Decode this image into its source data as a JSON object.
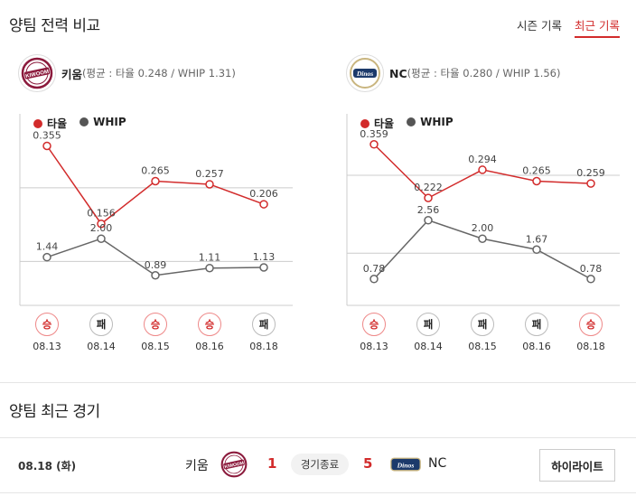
{
  "header": {
    "title": "양팀 전력 비교"
  },
  "tabs": [
    {
      "label": "시즌 기록",
      "active": false
    },
    {
      "label": "최근 기록",
      "active": true
    }
  ],
  "teams": [
    {
      "name": "키움",
      "stats": "(평균 : 타율 0.248 / WHIP 1.31)",
      "logo_icon": "kiwoom-logo-icon",
      "legend": {
        "avg": "타율",
        "whip": "WHIP"
      },
      "dates": [
        "08.13",
        "08.14",
        "08.15",
        "08.16",
        "08.18"
      ],
      "results": [
        "승",
        "패",
        "승",
        "승",
        "패"
      ],
      "avg_labels": [
        "0.355",
        "0.156",
        "0.265",
        "0.257",
        "0.206"
      ],
      "whip_labels": [
        "1.44",
        "2.00",
        "0.89",
        "1.11",
        "1.13"
      ]
    },
    {
      "name": "NC",
      "stats": "(평균 : 타율 0.280 / WHIP 1.56)",
      "logo_icon": "dinos-logo-icon",
      "legend": {
        "avg": "타율",
        "whip": "WHIP"
      },
      "dates": [
        "08.13",
        "08.14",
        "08.15",
        "08.16",
        "08.18"
      ],
      "results": [
        "승",
        "패",
        "패",
        "패",
        "승"
      ],
      "avg_labels": [
        "0.359",
        "0.222",
        "0.294",
        "0.265",
        "0.259"
      ],
      "whip_labels": [
        "0.78",
        "2.56",
        "2.00",
        "1.67",
        "0.78"
      ]
    }
  ],
  "chart_data": [
    {
      "type": "line",
      "x": [
        "08.13",
        "08.14",
        "08.15",
        "08.16",
        "08.18"
      ],
      "series": [
        {
          "name": "타율",
          "values": [
            0.355,
            0.156,
            0.265,
            0.257,
            0.206
          ],
          "color": "#d22b2b"
        },
        {
          "name": "WHIP",
          "values": [
            1.44,
            2.0,
            0.89,
            1.11,
            1.13
          ],
          "color": "#555555"
        }
      ],
      "reference": {
        "avg": 0.248,
        "whip": 1.31
      }
    },
    {
      "type": "line",
      "x": [
        "08.13",
        "08.14",
        "08.15",
        "08.16",
        "08.18"
      ],
      "series": [
        {
          "name": "타율",
          "values": [
            0.359,
            0.222,
            0.294,
            0.265,
            0.259
          ],
          "color": "#d22b2b"
        },
        {
          "name": "WHIP",
          "values": [
            0.78,
            2.56,
            2.0,
            1.67,
            0.78
          ],
          "color": "#555555"
        }
      ],
      "reference": {
        "avg": 0.28,
        "whip": 1.56
      }
    }
  ],
  "recent": {
    "title": "양팀 최근 경기",
    "game": {
      "date": "08.18 (화)",
      "home": "키움",
      "home_score": "1",
      "status": "경기종료",
      "away_score": "5",
      "away": "NC",
      "highlight_label": "하이라이트"
    }
  }
}
